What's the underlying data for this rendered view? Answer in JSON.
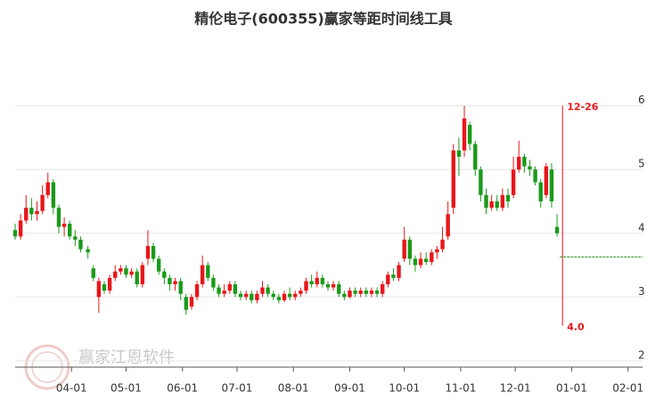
{
  "chart_data": {
    "type": "candlestick",
    "title": "精伦电子(600355)赢家等距时间线工具",
    "watermark": "赢家江恩软件",
    "up_color": "#e8161b",
    "down_color": "#1a9a1a",
    "xlim": [
      0,
      345
    ],
    "xticks": [
      {
        "value": 31,
        "label": "04-01"
      },
      {
        "value": 61,
        "label": "05-01"
      },
      {
        "value": 92,
        "label": "06-01"
      },
      {
        "value": 122,
        "label": "07-01"
      },
      {
        "value": 153,
        "label": "08-01"
      },
      {
        "value": 184,
        "label": "09-01"
      },
      {
        "value": 214,
        "label": "10-01"
      },
      {
        "value": 245,
        "label": "11-01"
      },
      {
        "value": 275,
        "label": "12-01"
      },
      {
        "value": 306,
        "label": "01-01"
      },
      {
        "value": 337,
        "label": "02-01"
      }
    ],
    "ylim": [
      1.9,
      7.1
    ],
    "yticks": [
      2,
      3,
      4,
      5,
      6
    ],
    "grid": true,
    "x": [
      0,
      3,
      6,
      9,
      12,
      15,
      18,
      21,
      24,
      27,
      30,
      33,
      36,
      40,
      43,
      46,
      49,
      52,
      55,
      58,
      61,
      64,
      67,
      70,
      73,
      76,
      79,
      82,
      85,
      88,
      91,
      94,
      97,
      100,
      103,
      106,
      109,
      112,
      115,
      118,
      121,
      124,
      127,
      130,
      133,
      136,
      139,
      142,
      145,
      148,
      151,
      154,
      157,
      160,
      163,
      166,
      169,
      172,
      175,
      178,
      181,
      184,
      187,
      190,
      193,
      196,
      199,
      202,
      205,
      208,
      211,
      214,
      217,
      220,
      223,
      226,
      229,
      232,
      235,
      238,
      241,
      244,
      247,
      250,
      253,
      256,
      259,
      262,
      265,
      268,
      271,
      274,
      277,
      280,
      283,
      286,
      289,
      292,
      295,
      298
    ],
    "open": [
      4.05,
      3.95,
      4.2,
      4.4,
      4.3,
      4.35,
      4.6,
      4.8,
      4.4,
      4.1,
      4.15,
      3.95,
      3.9,
      3.75,
      3.45,
      3.0,
      3.2,
      3.1,
      3.3,
      3.4,
      3.45,
      3.35,
      3.4,
      3.2,
      3.6,
      3.8,
      3.6,
      3.4,
      3.3,
      3.2,
      3.25,
      3.0,
      2.85,
      3.0,
      3.2,
      3.5,
      3.3,
      3.15,
      3.05,
      3.1,
      3.2,
      3.05,
      3.0,
      3.05,
      2.95,
      3.05,
      3.15,
      3.05,
      3.0,
      2.95,
      3.05,
      3.0,
      3.05,
      3.1,
      3.25,
      3.2,
      3.3,
      3.2,
      3.15,
      3.2,
      3.05,
      3.0,
      3.1,
      3.05,
      3.1,
      3.05,
      3.1,
      3.05,
      3.2,
      3.35,
      3.3,
      3.6,
      3.9,
      3.6,
      3.5,
      3.6,
      3.55,
      3.7,
      3.75,
      3.95,
      4.4,
      5.3,
      5.3,
      5.7,
      5.4,
      5.0,
      4.6,
      4.4,
      4.5,
      4.4,
      4.6,
      4.6,
      5.0,
      5.2,
      5.05,
      5.0,
      4.8,
      4.6,
      5.0,
      4.1
    ],
    "high": [
      4.15,
      4.3,
      4.6,
      4.55,
      4.5,
      4.75,
      4.95,
      4.85,
      4.45,
      4.25,
      4.2,
      4.05,
      3.95,
      3.8,
      3.5,
      3.3,
      3.25,
      3.35,
      3.5,
      3.5,
      3.5,
      3.45,
      3.45,
      3.55,
      4.05,
      3.85,
      3.65,
      3.45,
      3.35,
      3.3,
      3.3,
      3.05,
      3.05,
      3.25,
      3.65,
      3.55,
      3.35,
      3.2,
      3.2,
      3.25,
      3.25,
      3.1,
      3.1,
      3.1,
      3.1,
      3.25,
      3.2,
      3.1,
      3.05,
      3.1,
      3.15,
      3.1,
      3.15,
      3.3,
      3.35,
      3.4,
      3.35,
      3.25,
      3.25,
      3.25,
      3.1,
      3.15,
      3.15,
      3.15,
      3.15,
      3.15,
      3.15,
      3.25,
      3.4,
      3.45,
      3.55,
      4.1,
      3.95,
      3.65,
      3.7,
      3.7,
      3.75,
      3.8,
      4.1,
      4.5,
      5.4,
      5.5,
      6.0,
      5.75,
      5.45,
      5.05,
      4.7,
      4.6,
      4.6,
      4.7,
      4.7,
      5.2,
      5.45,
      5.25,
      5.15,
      5.05,
      4.85,
      5.1,
      5.1,
      4.3
    ],
    "low": [
      3.9,
      3.9,
      4.15,
      4.2,
      4.2,
      4.3,
      4.55,
      4.3,
      4.0,
      3.95,
      3.9,
      3.8,
      3.7,
      3.6,
      3.25,
      2.75,
      3.05,
      3.05,
      3.25,
      3.35,
      3.3,
      3.3,
      3.15,
      3.15,
      3.5,
      3.55,
      3.35,
      3.2,
      3.1,
      3.1,
      2.95,
      2.72,
      2.8,
      2.95,
      3.15,
      3.25,
      3.1,
      3.0,
      3.0,
      3.05,
      3.0,
      2.95,
      2.95,
      2.9,
      2.9,
      3.0,
      3.0,
      2.95,
      2.9,
      2.92,
      2.95,
      2.95,
      3.0,
      3.05,
      3.15,
      3.15,
      3.15,
      3.1,
      3.1,
      3.0,
      2.95,
      2.98,
      3.0,
      3.0,
      3.0,
      3.0,
      3.0,
      3.0,
      3.15,
      3.25,
      3.25,
      3.55,
      3.5,
      3.4,
      3.45,
      3.5,
      3.5,
      3.6,
      3.7,
      3.9,
      4.3,
      4.9,
      5.2,
      5.3,
      4.9,
      4.5,
      4.3,
      4.35,
      4.35,
      4.35,
      4.4,
      4.55,
      4.95,
      4.95,
      4.9,
      4.75,
      4.4,
      4.55,
      4.4,
      3.95
    ],
    "close": [
      3.95,
      4.2,
      4.4,
      4.3,
      4.35,
      4.6,
      4.8,
      4.4,
      4.1,
      4.15,
      3.95,
      3.9,
      3.75,
      3.7,
      3.3,
      3.25,
      3.1,
      3.3,
      3.4,
      3.45,
      3.35,
      3.4,
      3.2,
      3.5,
      3.8,
      3.6,
      3.4,
      3.3,
      3.2,
      3.25,
      3.05,
      2.8,
      3.0,
      3.2,
      3.5,
      3.3,
      3.15,
      3.05,
      3.1,
      3.2,
      3.05,
      3.0,
      3.05,
      2.95,
      3.05,
      3.15,
      3.05,
      3.0,
      2.95,
      3.05,
      3.0,
      3.05,
      3.1,
      3.25,
      3.2,
      3.3,
      3.2,
      3.15,
      3.2,
      3.05,
      3.0,
      3.1,
      3.05,
      3.1,
      3.05,
      3.1,
      3.05,
      3.2,
      3.35,
      3.3,
      3.5,
      3.9,
      3.6,
      3.5,
      3.6,
      3.55,
      3.7,
      3.75,
      3.9,
      4.3,
      5.3,
      5.2,
      5.8,
      5.4,
      5.0,
      4.6,
      4.4,
      4.5,
      4.4,
      4.6,
      4.5,
      5.0,
      5.2,
      5.05,
      5.0,
      4.8,
      4.5,
      5.05,
      4.5,
      4.0
    ],
    "time_line": {
      "x": 301,
      "top": 6.0,
      "bottom": 2.55,
      "color": "#e8161b",
      "top_label": "12-26",
      "bottom_label": "4.0"
    },
    "level_line": {
      "y": 3.63,
      "color": "#1a8a1a"
    }
  }
}
